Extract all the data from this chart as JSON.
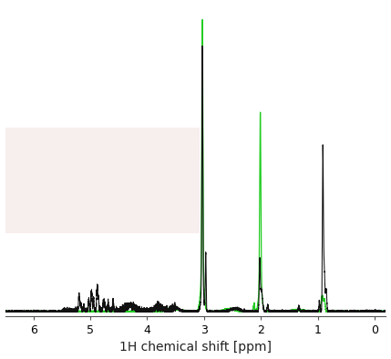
{
  "title": "",
  "xlabel": "1H chemical shift [ppm]",
  "ylabel": "",
  "xlim": [
    6.5,
    -0.2
  ],
  "ylim": [
    -0.015,
    1.05
  ],
  "background_color": "#ffffff",
  "highlight_box_color": "#f7eeee",
  "black_color": "#111111",
  "green_color": "#22cc22",
  "xticks": [
    6,
    5,
    4,
    3,
    2,
    1,
    0
  ],
  "xlabel_fontsize": 10
}
